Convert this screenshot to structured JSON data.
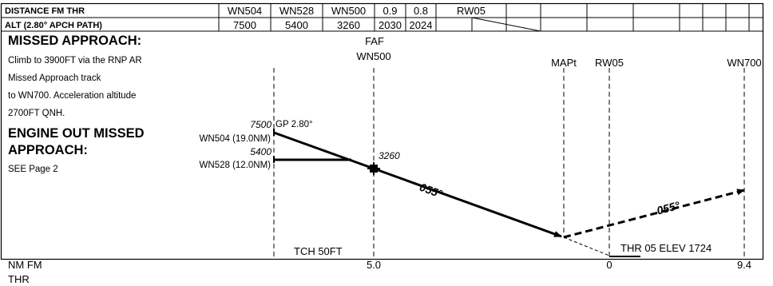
{
  "table": {
    "row1_label": "DISTANCE FM THR",
    "row2_label": "ALT (2.80° APCH PATH)",
    "waypoints": [
      "WN504",
      "WN528",
      "WN500",
      "0.9",
      "0.8",
      "RW05"
    ],
    "altitudes": [
      "7500",
      "5400",
      "3260",
      "2030",
      "2024"
    ]
  },
  "missed_approach": {
    "title": "MISSED APPROACH:",
    "lines": [
      "Climb to 3900FT via the RNP AR",
      "Missed Approach track",
      "to WN700. Acceleration altitude",
      "2700FT QNH."
    ]
  },
  "engine_out": {
    "title_line1": "ENGINE OUT MISSED",
    "title_line2": "APPROACH:",
    "text": "SEE Page 2"
  },
  "profile": {
    "faf_label": "FAF",
    "faf_fix": "WN500",
    "mapt_label": "MAPt",
    "rw_label": "RW05",
    "wn700_label": "WN700",
    "alt_7500": "7500",
    "gp_label": "GP 2.80°",
    "wn504_dist": "WN504 (19.0NM)",
    "alt_5400": "5400",
    "wn528_dist": "WN528 (12.0NM)",
    "alt_3260": "3260",
    "track_final": "055°",
    "track_missed": "055°",
    "tch": "TCH 50FT",
    "threshold": "THR 05 ELEV 1724"
  },
  "axis": {
    "label_line1": "NM FM",
    "label_line2": "THR",
    "ticks": [
      "5.0",
      "0",
      "9.4"
    ]
  }
}
